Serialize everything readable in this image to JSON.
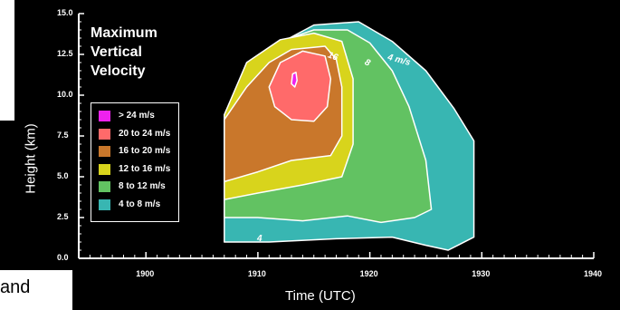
{
  "chart_data": {
    "type": "area",
    "title": "Maximum\nVertical\nVelocity",
    "title_lines": [
      "Maximum",
      "Vertical",
      "Velocity"
    ],
    "xlabel": "Time (UTC)",
    "ylabel": "Height (km)",
    "xlim": [
      1894,
      1940
    ],
    "ylim": [
      0,
      15
    ],
    "x_ticks": [
      "1900",
      "1910",
      "1920",
      "1930",
      "1940"
    ],
    "y_ticks": [
      "0.0",
      "2.5",
      "5.0",
      "7.5",
      "10.0",
      "12.5",
      "15.0"
    ],
    "legend": [
      {
        "label": "> 24 m/s",
        "color": "#ee22ee"
      },
      {
        "label": "20 to 24 m/s",
        "color": "#ff6a6a"
      },
      {
        "label": "16 to 20 m/s",
        "color": "#c9772b"
      },
      {
        "label": "12 to 16 m/s",
        "color": "#d8d41c"
      },
      {
        "label": "8 to 12 m/s",
        "color": "#62c262"
      },
      {
        "label": "4 to 8 m/s",
        "color": "#38b6b2"
      }
    ],
    "contour_labels": [
      "16",
      "8",
      "4 m/s",
      "4"
    ],
    "contours": [
      {
        "level": "4 to 8 m/s",
        "color": "#38b6b2",
        "points": [
          [
            1907,
            1
          ],
          [
            1907,
            8
          ],
          [
            1909,
            11.5
          ],
          [
            1912,
            13.2
          ],
          [
            1915,
            14.3
          ],
          [
            1919,
            14.5
          ],
          [
            1922,
            13.3
          ],
          [
            1925,
            11.5
          ],
          [
            1927.5,
            9.2
          ],
          [
            1929.3,
            7.2
          ],
          [
            1929.3,
            1.3
          ],
          [
            1927,
            0.5
          ],
          [
            1925,
            0.8
          ],
          [
            1922,
            1.3
          ],
          [
            1917,
            1.2
          ],
          [
            1911,
            1.0
          ]
        ]
      },
      {
        "level": "8 to 12 m/s",
        "color": "#62c262",
        "points": [
          [
            1907,
            2.5
          ],
          [
            1907,
            8.5
          ],
          [
            1909,
            11.8
          ],
          [
            1912,
            13.3
          ],
          [
            1915,
            14.0
          ],
          [
            1918,
            14.0
          ],
          [
            1920,
            13.2
          ],
          [
            1922,
            11.5
          ],
          [
            1923.5,
            9.3
          ],
          [
            1925,
            6.0
          ],
          [
            1925.5,
            3.0
          ],
          [
            1924,
            2.5
          ],
          [
            1921,
            2.2
          ],
          [
            1918,
            2.6
          ],
          [
            1914,
            2.3
          ],
          [
            1910,
            2.5
          ]
        ]
      },
      {
        "level": "12 to 16 m/s",
        "color": "#d8d41c",
        "points": [
          [
            1907,
            3.6
          ],
          [
            1907,
            8.8
          ],
          [
            1909,
            12.0
          ],
          [
            1912,
            13.4
          ],
          [
            1915,
            13.8
          ],
          [
            1917.5,
            13.3
          ],
          [
            1918.5,
            11.0
          ],
          [
            1918.5,
            7.0
          ],
          [
            1917.5,
            5.0
          ],
          [
            1914,
            4.5
          ],
          [
            1910,
            4.0
          ]
        ]
      },
      {
        "level": "16 to 20 m/s",
        "color": "#c9772b",
        "points": [
          [
            1907,
            4.7
          ],
          [
            1907,
            8.5
          ],
          [
            1909,
            10.5
          ],
          [
            1911,
            12.0
          ],
          [
            1913,
            12.8
          ],
          [
            1916,
            13.0
          ],
          [
            1917,
            12.2
          ],
          [
            1917.5,
            10.5
          ],
          [
            1917.5,
            7.5
          ],
          [
            1916.5,
            6.3
          ],
          [
            1913,
            6.0
          ],
          [
            1910,
            5.3
          ]
        ]
      },
      {
        "level": "20 to 24 m/s",
        "color": "#ff6a6a",
        "points": [
          [
            1911,
            10.5
          ],
          [
            1912,
            12.0
          ],
          [
            1914,
            12.7
          ],
          [
            1916,
            12.4
          ],
          [
            1916.5,
            11.0
          ],
          [
            1916.2,
            9.3
          ],
          [
            1915,
            8.4
          ],
          [
            1913,
            8.5
          ],
          [
            1911.5,
            9.3
          ]
        ]
      },
      {
        "level": "> 24 m/s",
        "color": "#ee22ee",
        "points": [
          [
            1913,
            10.7
          ],
          [
            1913.1,
            11.3
          ],
          [
            1913.4,
            11.4
          ],
          [
            1913.5,
            10.9
          ],
          [
            1913.3,
            10.5
          ]
        ]
      }
    ]
  }
}
